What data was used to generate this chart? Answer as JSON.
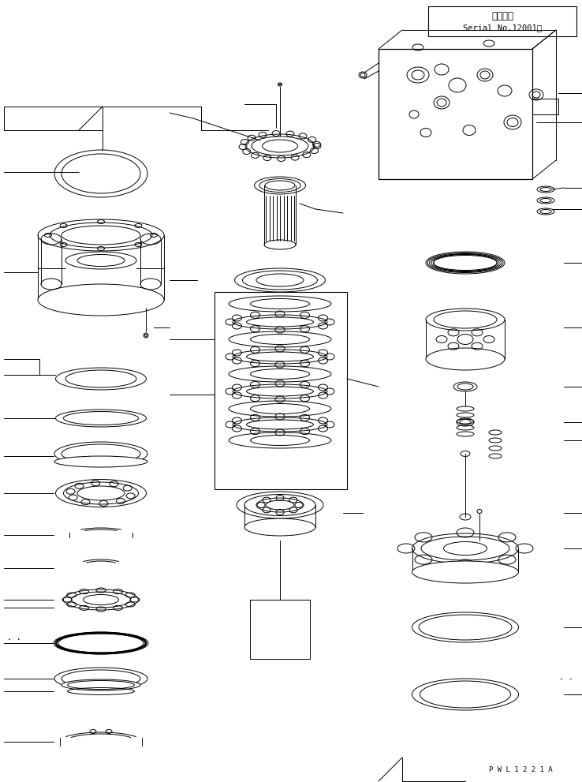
{
  "fig_width": 7.38,
  "fig_height": 9.91,
  "dpi": 100,
  "bg": "#ffffff",
  "lc": "#000000",
  "lw": 0.7,
  "top_right_label1": "適用号機",
  "top_right_label2": "Serial No.12001～",
  "bottom_text": "P W L 1 2 2 1 A"
}
